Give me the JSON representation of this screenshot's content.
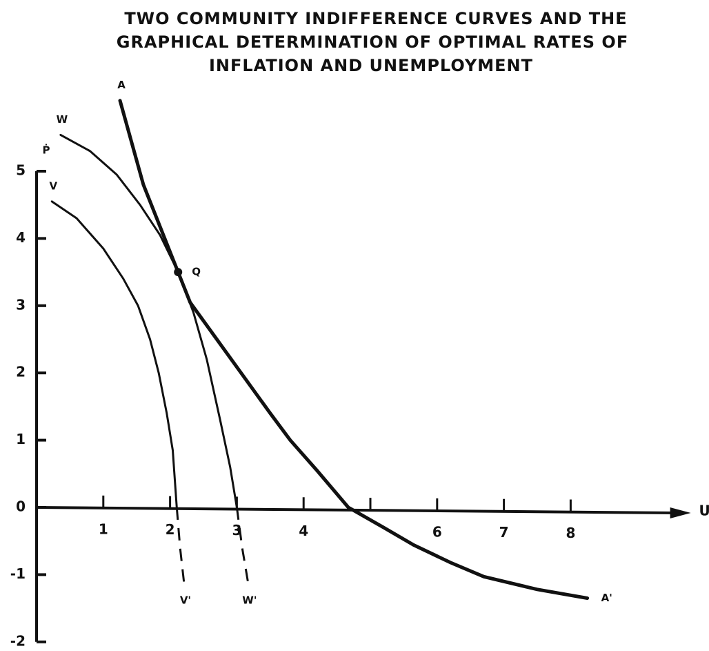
{
  "chart_data": {
    "type": "line",
    "title_lines": [
      "TWO COMMUNITY INDIFFERENCE CURVES AND THE",
      "GRAPHICAL DETERMINATION OF OPTIMAL RATES OF",
      "INFLATION AND UNEMPLOYMENT"
    ],
    "x_label": "U",
    "y_label": "Ṗ",
    "xlim": [
      0,
      9.8
    ],
    "ylim": [
      -2,
      5
    ],
    "xticks": [
      1,
      2,
      3,
      4,
      {
        "value": 5,
        "label": null
      },
      6,
      7,
      8
    ],
    "yticks": [
      -2,
      -1,
      0,
      1,
      2,
      3,
      4,
      5
    ],
    "color": "#111111",
    "series": [
      {
        "name": "A",
        "end_label": "A'",
        "width": 5,
        "x": [
          1.25,
          1.6,
          1.9,
          2.12,
          2.3,
          2.7,
          3.1,
          3.5,
          3.8,
          4.2,
          4.67,
          5.2,
          5.65,
          6.2,
          6.7,
          7.5,
          8.25
        ],
        "values": [
          6.05,
          4.8,
          4.05,
          3.5,
          3.05,
          2.5,
          1.95,
          1.4,
          1.0,
          0.55,
          0,
          -0.3,
          -0.56,
          -0.82,
          -1.03,
          -1.22,
          -1.35
        ]
      },
      {
        "name": "W",
        "end_label": "W'",
        "width": 3,
        "x": [
          0.36,
          0.8,
          1.2,
          1.55,
          1.85,
          2.12,
          2.35,
          2.55,
          2.75,
          2.9,
          3.0
        ],
        "values": [
          5.54,
          5.3,
          4.95,
          4.5,
          4.05,
          3.5,
          2.9,
          2.2,
          1.3,
          0.6,
          0
        ],
        "extension": {
          "style": "dashed",
          "x": [
            3.0,
            3.08,
            3.17
          ],
          "values": [
            0,
            -0.6,
            -1.13
          ]
        }
      },
      {
        "name": "V",
        "end_label": "V'",
        "width": 3,
        "x": [
          0.23,
          0.6,
          1.0,
          1.3,
          1.52,
          1.7,
          1.83,
          1.95,
          2.04,
          2.1
        ],
        "values": [
          4.55,
          4.3,
          3.85,
          3.4,
          3.0,
          2.5,
          2.0,
          1.4,
          0.85,
          0
        ],
        "extension": {
          "style": "dashed",
          "x": [
            2.1,
            2.15,
            2.21
          ],
          "values": [
            0,
            -0.6,
            -1.13
          ]
        }
      }
    ],
    "points": [
      {
        "label": "Q",
        "x": 2.12,
        "y": 3.5
      }
    ]
  }
}
